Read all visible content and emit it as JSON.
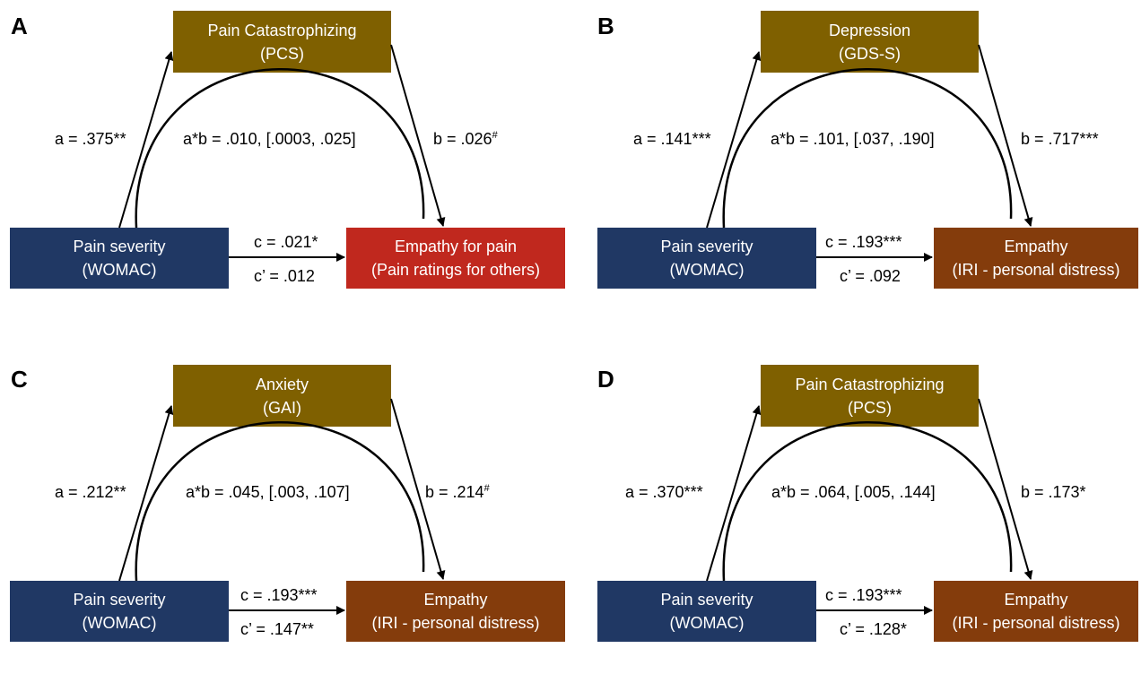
{
  "colors": {
    "mediator_fill": "#7f6000",
    "predictor_fill": "#203864",
    "outcome_red": "#c0281e",
    "outcome_brown": "#843c0c"
  },
  "panels": [
    {
      "letter": "A",
      "mediator": {
        "line1": "Pain Catastrophizing",
        "line2": "(PCS)"
      },
      "predictor": {
        "line1": "Pain severity",
        "line2": "(WOMAC)"
      },
      "outcome": {
        "line1": "Empathy for pain",
        "line2": "(Pain ratings for others)",
        "color": "#c0281e"
      },
      "a": "a = .375**",
      "b": "b = .026",
      "b_sup": "#",
      "ab": "a*b = .010, [.0003, .025]",
      "c": "c = .021*",
      "c_prime": "c’ = .012"
    },
    {
      "letter": "B",
      "mediator": {
        "line1": "Depression",
        "line2": "(GDS-S)"
      },
      "predictor": {
        "line1": "Pain severity",
        "line2": "(WOMAC)"
      },
      "outcome": {
        "line1": "Empathy",
        "line2": "(IRI - personal distress)",
        "color": "#843c0c"
      },
      "a": "a = .141***",
      "b": "b = .717***",
      "b_sup": "",
      "ab": "a*b = .101, [.037, .190]",
      "c": "c = .193***",
      "c_prime": "c’ = .092"
    },
    {
      "letter": "C",
      "mediator": {
        "line1": "Anxiety",
        "line2": "(GAI)"
      },
      "predictor": {
        "line1": "Pain severity",
        "line2": "(WOMAC)"
      },
      "outcome": {
        "line1": "Empathy",
        "line2": "(IRI - personal distress)",
        "color": "#843c0c"
      },
      "a": "a = .212**",
      "b": "b = .214",
      "b_sup": "#",
      "ab": "a*b = .045, [.003, .107]",
      "c": "c = .193***",
      "c_prime": "c’ = .147**"
    },
    {
      "letter": "D",
      "mediator": {
        "line1": "Pain Catastrophizing",
        "line2": "(PCS)"
      },
      "predictor": {
        "line1": "Pain severity",
        "line2": "(WOMAC)"
      },
      "outcome": {
        "line1": "Empathy",
        "line2": "(IRI - personal distress)",
        "color": "#843c0c"
      },
      "a": "a = .370***",
      "b": "b = .173*",
      "b_sup": "",
      "ab": "a*b = .064, [.005, .144]",
      "c": "c = .193***",
      "c_prime": "c’ = .128*"
    }
  ]
}
